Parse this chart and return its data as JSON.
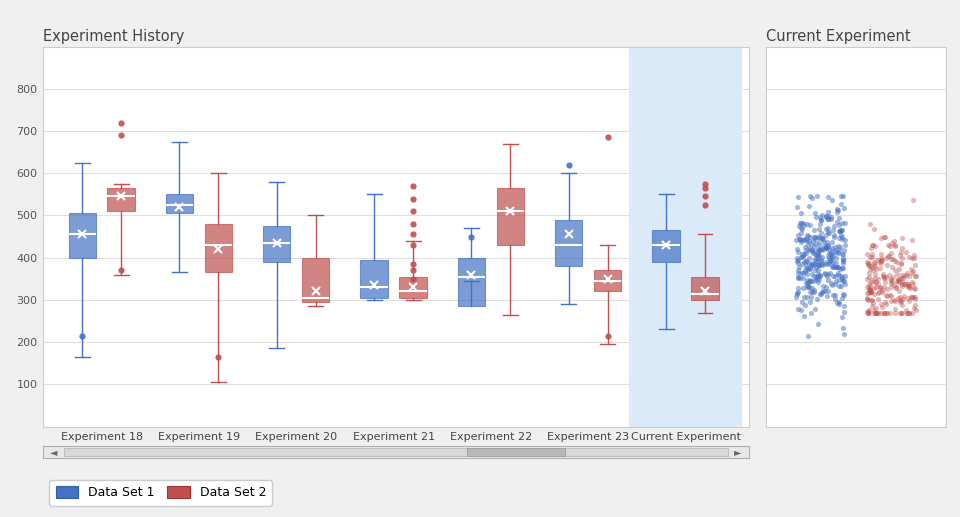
{
  "title_left": "Experiment History",
  "title_right": "Current Experiment",
  "outer_bg": "#f0f0f0",
  "panel_bg": "#ffffff",
  "grid_color": "#e0e0e0",
  "blue_color": "#4472C4",
  "red_color": "#C0504D",
  "highlight_color": "#DAEAF8",
  "ylim": [
    0,
    900
  ],
  "yticks": [
    100,
    200,
    300,
    400,
    500,
    600,
    700,
    800
  ],
  "experiments": [
    "Experiment 18",
    "Experiment 19",
    "Experiment 20",
    "Experiment 21",
    "Experiment 22",
    "Experiment 23",
    "Current Experiment"
  ],
  "box_data": {
    "blue": [
      {
        "min": 165,
        "q1": 400,
        "median": 455,
        "mean": 455,
        "q3": 505,
        "max": 625,
        "outliers": [
          215
        ]
      },
      {
        "min": 365,
        "q1": 505,
        "median": 525,
        "mean": 520,
        "q3": 550,
        "max": 675,
        "outliers": []
      },
      {
        "min": 185,
        "q1": 390,
        "median": 435,
        "mean": 435,
        "q3": 475,
        "max": 580,
        "outliers": []
      },
      {
        "min": 300,
        "q1": 305,
        "median": 330,
        "mean": 335,
        "q3": 395,
        "max": 550,
        "outliers": []
      },
      {
        "min": 345,
        "q1": 285,
        "median": 355,
        "mean": 360,
        "q3": 400,
        "max": 470,
        "outliers": [
          450
        ]
      },
      {
        "min": 290,
        "q1": 380,
        "median": 430,
        "mean": 455,
        "q3": 490,
        "max": 600,
        "outliers": [
          620
        ]
      },
      {
        "min": 230,
        "q1": 390,
        "median": 430,
        "mean": 430,
        "q3": 465,
        "max": 550,
        "outliers": []
      }
    ],
    "red": [
      {
        "min": 360,
        "q1": 510,
        "median": 545,
        "mean": 545,
        "q3": 565,
        "max": 575,
        "outliers": [
          370,
          690,
          720
        ]
      },
      {
        "min": 105,
        "q1": 365,
        "median": 430,
        "mean": 420,
        "q3": 480,
        "max": 600,
        "outliers": [
          165
        ]
      },
      {
        "min": 285,
        "q1": 295,
        "median": 305,
        "mean": 320,
        "q3": 400,
        "max": 500,
        "outliers": []
      },
      {
        "min": 300,
        "q1": 305,
        "median": 320,
        "mean": 330,
        "q3": 355,
        "max": 440,
        "outliers": [
          350,
          370,
          385,
          430,
          455,
          480,
          510,
          540,
          570
        ]
      },
      {
        "min": 265,
        "q1": 430,
        "median": 510,
        "mean": 510,
        "q3": 565,
        "max": 670,
        "outliers": []
      },
      {
        "min": 195,
        "q1": 320,
        "median": 345,
        "mean": 350,
        "q3": 370,
        "max": 430,
        "outliers": [
          215,
          685
        ]
      },
      {
        "min": 270,
        "q1": 300,
        "median": 315,
        "mean": 320,
        "q3": 355,
        "max": 455,
        "outliers": [
          525,
          545,
          565,
          575
        ]
      }
    ]
  },
  "scatter_blue_mean": 400,
  "scatter_blue_std": 65,
  "scatter_blue_min": 215,
  "scatter_blue_max": 545,
  "scatter_red_mean": 340,
  "scatter_red_std": 55,
  "scatter_red_min": 270,
  "scatter_red_max": 575
}
